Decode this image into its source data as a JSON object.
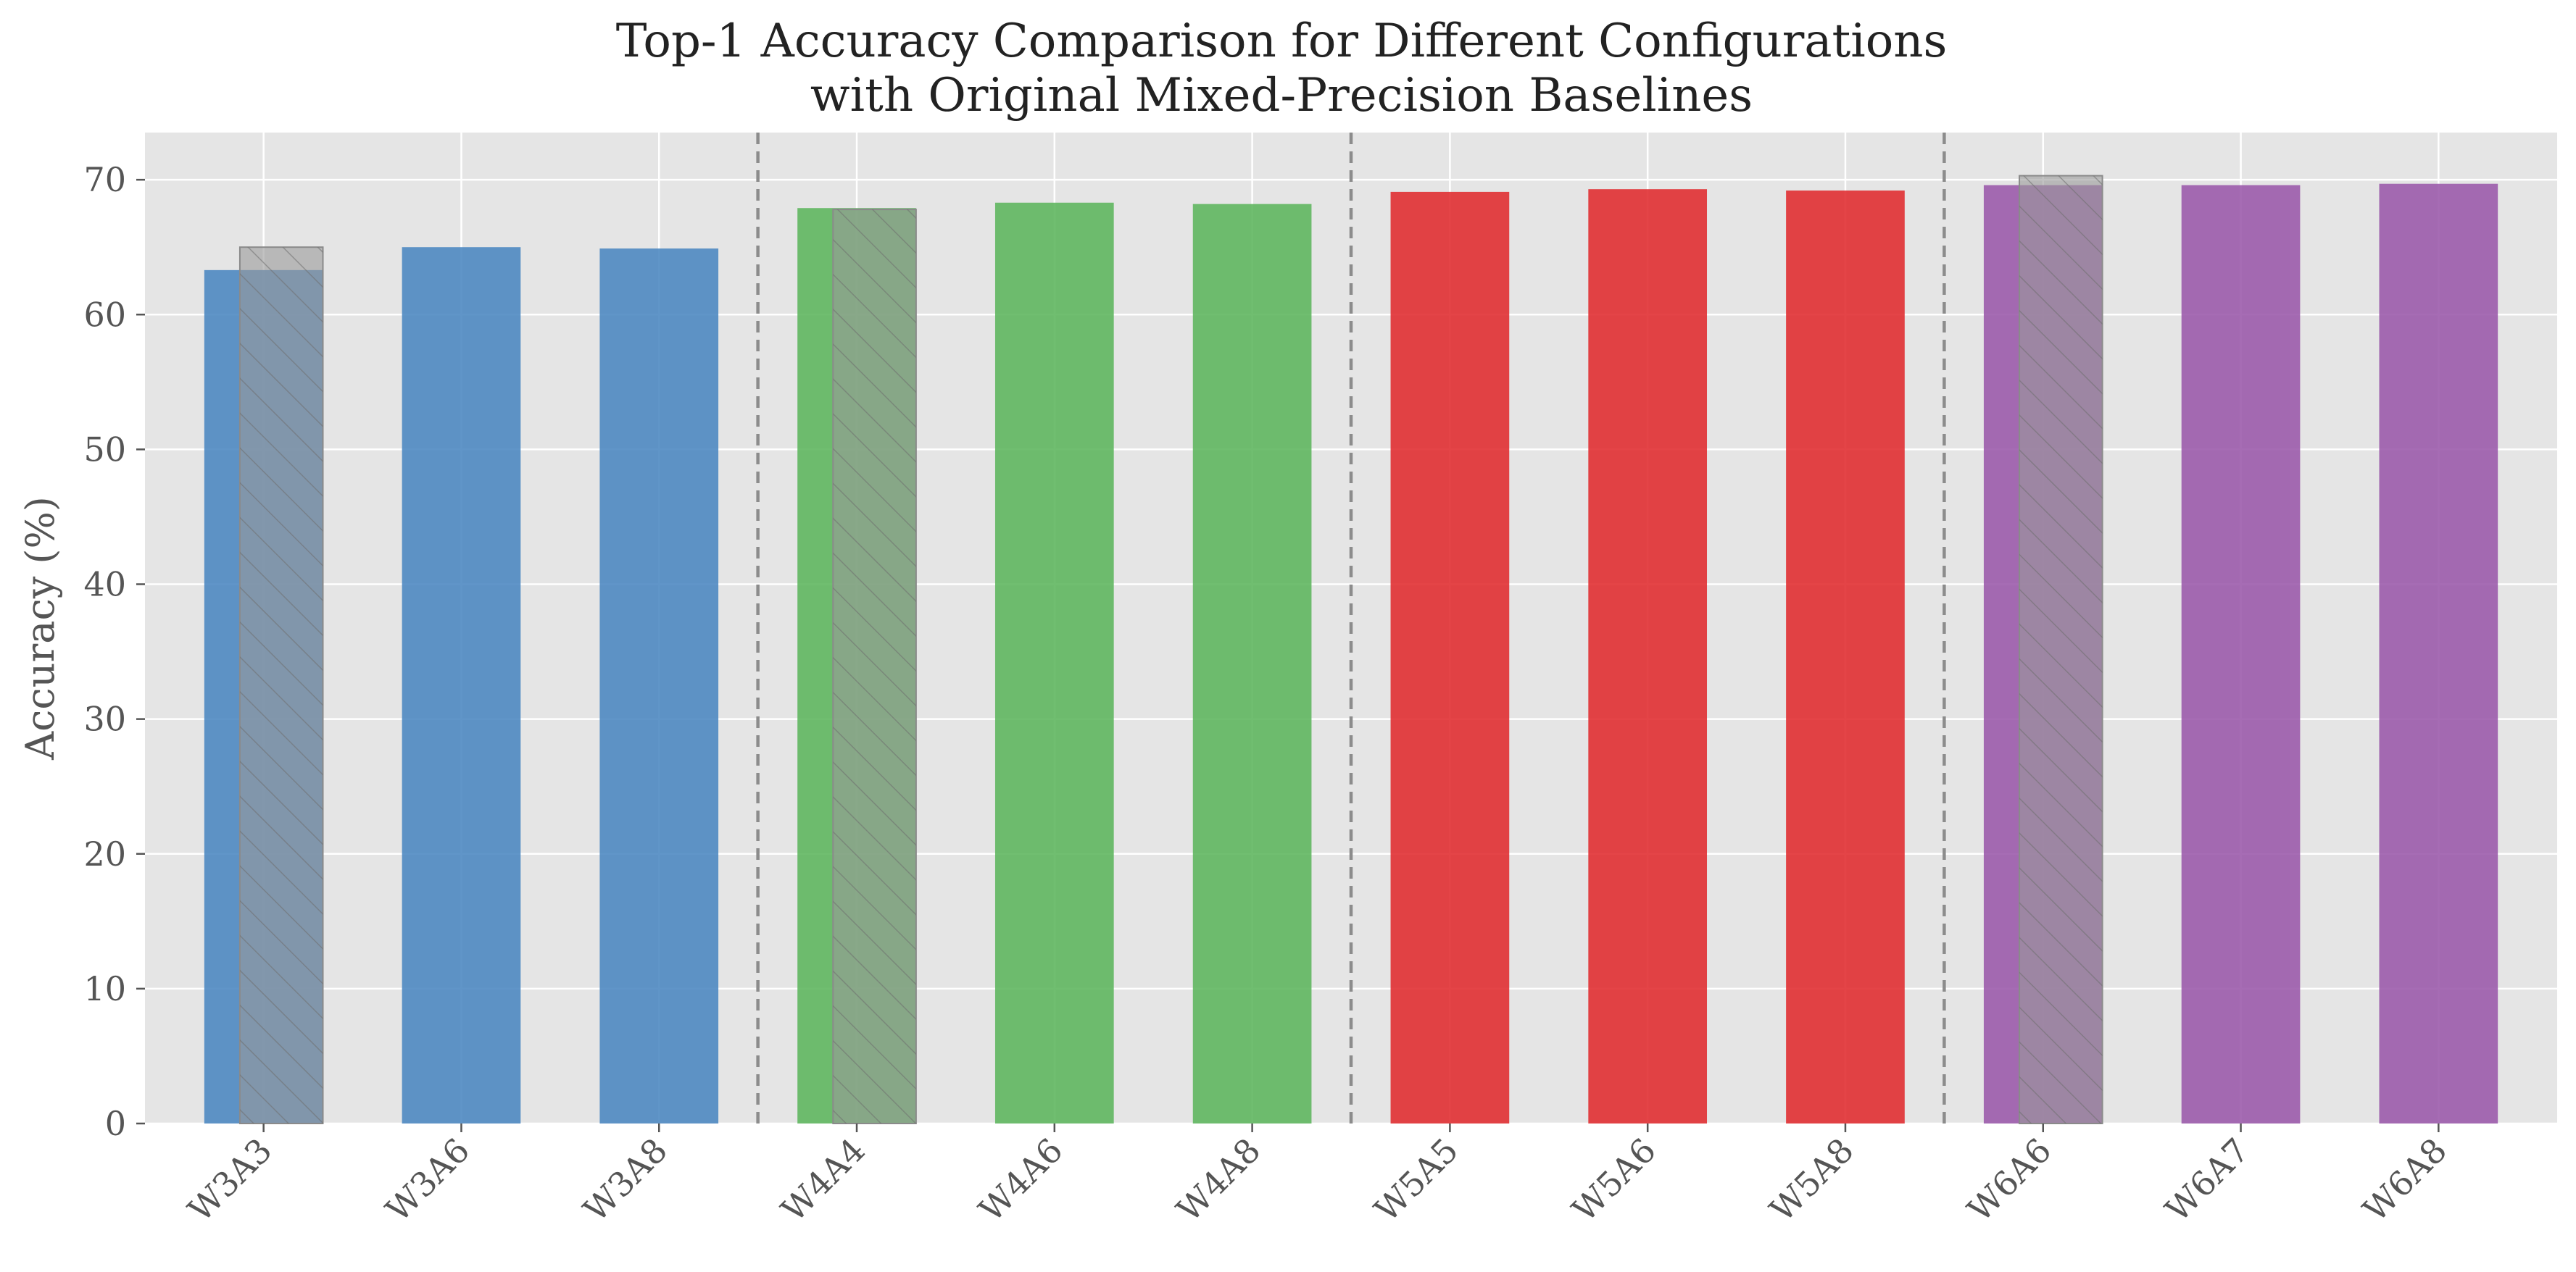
{
  "chart_data": {
    "type": "bar",
    "title_lines": [
      "Top-1 Accuracy Comparison for Different Configurations",
      "with Original Mixed-Precision Baselines"
    ],
    "xlabel": "",
    "ylabel": "Accuracy (%)",
    "ylim": [
      0,
      73.5
    ],
    "yticks": [
      0,
      10,
      20,
      30,
      40,
      50,
      60,
      70
    ],
    "grid": true,
    "categories": [
      "W3A3",
      "W3A6",
      "W3A8",
      "W4A4",
      "W4A6",
      "W4A8",
      "W5A5",
      "W5A6",
      "W5A8",
      "W6A6",
      "W6A7",
      "W6A8"
    ],
    "values": [
      63.3,
      65.0,
      64.9,
      67.9,
      68.3,
      68.2,
      69.1,
      69.3,
      69.2,
      69.6,
      69.6,
      69.7
    ],
    "groups": [
      {
        "weight_bits": "W3",
        "color": "#4a86c0",
        "categories": [
          "W3A3",
          "W3A6",
          "W3A8"
        ]
      },
      {
        "weight_bits": "W4",
        "color": "#5cb55c",
        "categories": [
          "W4A4",
          "W4A6",
          "W4A8"
        ]
      },
      {
        "weight_bits": "W5",
        "color": "#e02a2e",
        "categories": [
          "W5A5",
          "W5A6",
          "W5A8"
        ]
      },
      {
        "weight_bits": "W6",
        "color": "#9a58aa",
        "categories": [
          "W6A6",
          "W6A7",
          "W6A8"
        ]
      }
    ],
    "baselines": [
      {
        "category": "W3A3",
        "value": 65.0
      },
      {
        "category": "W4A4",
        "value": 67.8
      },
      {
        "category": "W6A6",
        "value": 70.3
      }
    ],
    "baseline_color": "#999999",
    "group_separator_style": "dashed"
  }
}
